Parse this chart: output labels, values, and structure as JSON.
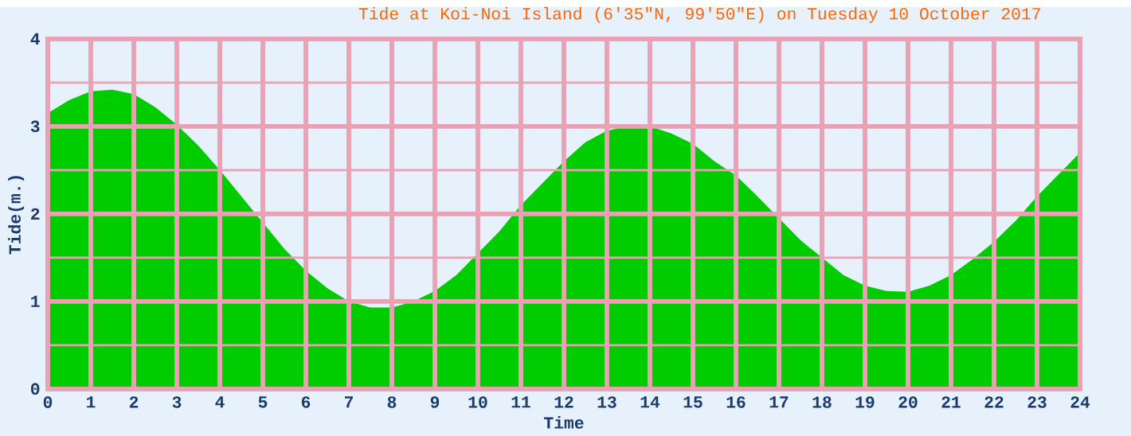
{
  "chart_data": {
    "type": "area",
    "title": "Tide at Koi-Noi Island (6′35\"N, 99′50\"E) on Tuesday 10 October 2017",
    "xlabel": "Time",
    "ylabel": "Tide(m.)",
    "x": [
      0,
      0.5,
      1,
      1.5,
      2,
      2.5,
      3,
      3.5,
      4,
      4.5,
      5,
      5.5,
      6,
      6.5,
      7,
      7.5,
      8,
      8.5,
      9,
      9.5,
      10,
      10.5,
      11,
      11.5,
      12,
      12.5,
      13,
      13.5,
      14,
      14.5,
      15,
      15.5,
      16,
      16.5,
      17,
      17.5,
      18,
      18.5,
      19,
      19.5,
      20,
      20.5,
      21,
      21.5,
      22,
      22.5,
      23,
      23.5,
      24
    ],
    "values": [
      3.15,
      3.3,
      3.4,
      3.42,
      3.37,
      3.22,
      3.02,
      2.78,
      2.5,
      2.2,
      1.9,
      1.6,
      1.35,
      1.15,
      1.0,
      0.93,
      0.93,
      1.0,
      1.12,
      1.3,
      1.55,
      1.8,
      2.1,
      2.35,
      2.6,
      2.82,
      2.95,
      3.0,
      3.0,
      2.92,
      2.8,
      2.6,
      2.44,
      2.2,
      1.95,
      1.7,
      1.5,
      1.3,
      1.18,
      1.12,
      1.11,
      1.18,
      1.3,
      1.48,
      1.68,
      1.92,
      2.2,
      2.45,
      2.7
    ],
    "color": "#00cc00",
    "xlim": [
      0,
      24
    ],
    "ylim": [
      0,
      4
    ],
    "xticks": [
      0,
      1,
      2,
      3,
      4,
      5,
      6,
      7,
      8,
      9,
      10,
      11,
      12,
      13,
      14,
      15,
      16,
      17,
      18,
      19,
      20,
      21,
      22,
      23,
      24
    ],
    "yticks": [
      0,
      {
        "value": 0.5,
        "label": null
      },
      1,
      {
        "value": 1.5,
        "label": null
      },
      2,
      {
        "value": 2.5,
        "label": null
      },
      3,
      {
        "value": 3.5,
        "label": null
      },
      4
    ],
    "grid": true
  }
}
